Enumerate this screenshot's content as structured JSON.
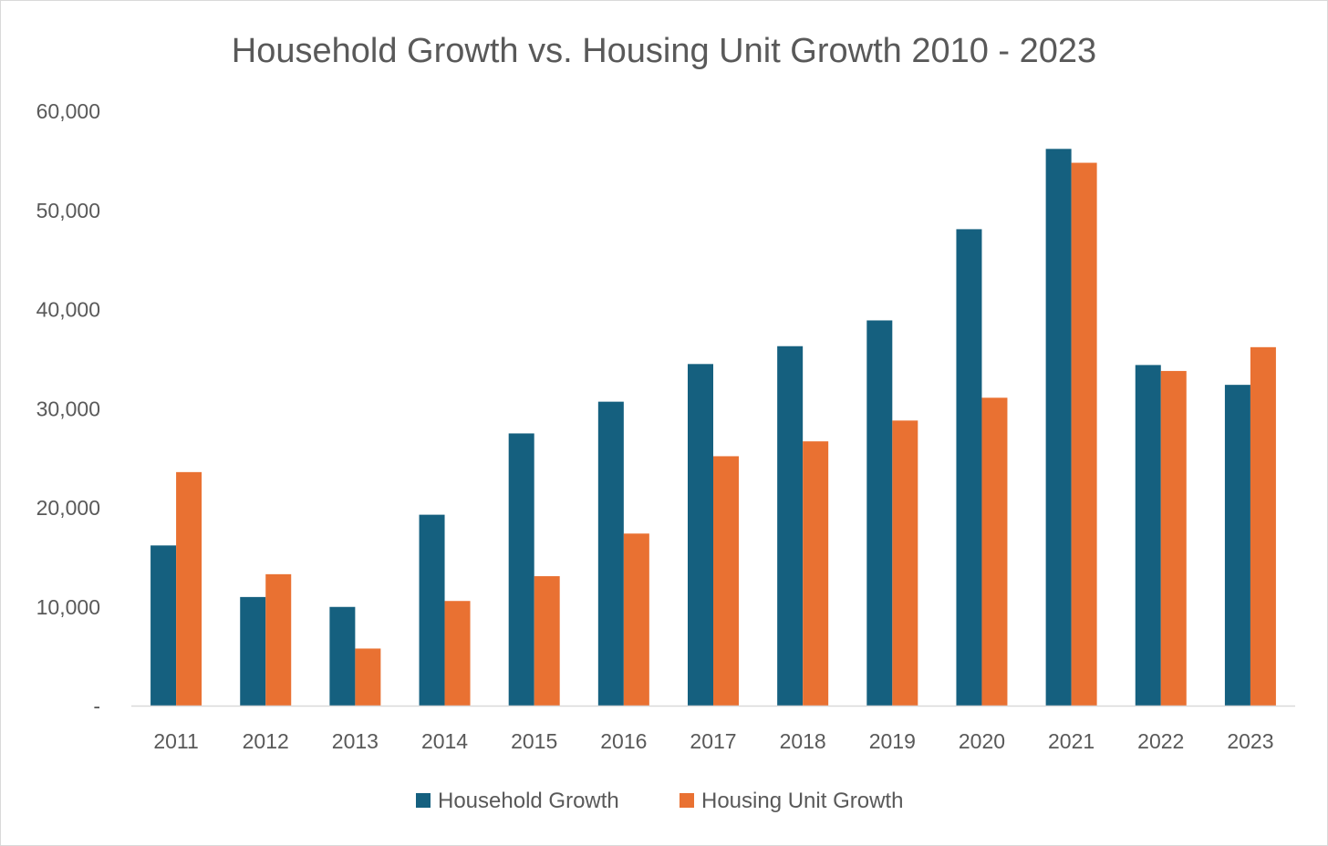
{
  "chart_data": {
    "type": "bar",
    "title": "Household Growth vs. Housing Unit Growth 2010 - 2023",
    "xlabel": "",
    "ylabel": "",
    "categories": [
      "2011",
      "2012",
      "2013",
      "2014",
      "2015",
      "2016",
      "2017",
      "2018",
      "2019",
      "2020",
      "2021",
      "2022",
      "2023"
    ],
    "series": [
      {
        "name": "Household Growth",
        "color": "#15607f",
        "values": [
          16200,
          11000,
          10000,
          19300,
          27500,
          30700,
          34500,
          36300,
          38900,
          48100,
          56200,
          34400,
          32400
        ]
      },
      {
        "name": "Housing Unit Growth",
        "color": "#e97132",
        "values": [
          23600,
          13300,
          5800,
          10600,
          13100,
          17400,
          25200,
          26700,
          28800,
          31100,
          54800,
          33800,
          36200
        ]
      }
    ],
    "ylim": [
      0,
      60000
    ],
    "yticks": [
      0,
      10000,
      20000,
      30000,
      40000,
      50000,
      60000
    ],
    "ytick_labels": [
      "-",
      "10,000",
      "20,000",
      "30,000",
      "40,000",
      "50,000",
      "60,000"
    ],
    "grid": false,
    "legend_position": "bottom"
  }
}
